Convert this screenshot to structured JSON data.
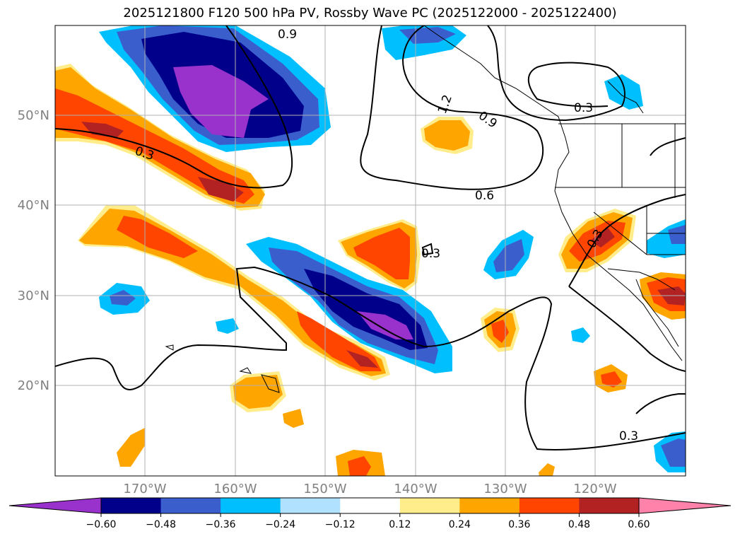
{
  "chart_data": {
    "type": "heatmap",
    "title": "2025121800 F120 500 hPa PV, Rossby Wave PC (2025122000 - 2025122400)",
    "lat_ticks": [
      "20°N",
      "30°N",
      "40°N",
      "50°N"
    ],
    "lon_ticks": [
      "170°W",
      "160°W",
      "150°W",
      "140°W",
      "130°W",
      "120°W"
    ],
    "lat_range": [
      10,
      60
    ],
    "lon_range": [
      -180,
      -110
    ],
    "colorbar": {
      "levels": [
        -0.6,
        -0.48,
        -0.36,
        -0.24,
        -0.12,
        0.12,
        0.24,
        0.36,
        0.48,
        0.6
      ],
      "labels": [
        "−0.60",
        "−0.48",
        "−0.36",
        "−0.24",
        "−0.12",
        "0.12",
        "0.24",
        "0.36",
        "0.48",
        "0.60"
      ],
      "colors": [
        "#9932CC",
        "#00008B",
        "#3A5FCD",
        "#00BFFF",
        "#B0E2FF",
        "#FFFFFF",
        "#FFEC8B",
        "#FFA500",
        "#FF4500",
        "#B22222",
        "#FF82AB"
      ]
    },
    "contour_labels": [
      "0.3",
      "0.3",
      "0.3",
      "0.3",
      "0.3",
      "0.6",
      "0.9",
      "1.2",
      "0.9"
    ],
    "shaded_features": [
      {
        "name": "north-pacific-negative",
        "center": [
          -158,
          52
        ],
        "peak": -0.62
      },
      {
        "name": "subtropical-negative-streak",
        "center": [
          -143,
          29
        ],
        "peak": -0.62
      },
      {
        "name": "west-positive-streak",
        "center": [
          -172,
          47
        ],
        "peak": 0.5
      },
      {
        "name": "central-positive-streak",
        "center": [
          -160,
          32
        ],
        "peak": 0.5
      },
      {
        "name": "gulf-alaska-positive",
        "center": [
          -135,
          49
        ],
        "peak": 0.36
      },
      {
        "name": "mid-pacific-positive",
        "center": [
          -144,
          35
        ],
        "peak": 0.45
      },
      {
        "name": "california-positive",
        "center": [
          -118,
          36
        ],
        "peak": 0.5
      },
      {
        "name": "baja-positive",
        "center": [
          -112,
          30
        ],
        "peak": 0.5
      }
    ]
  }
}
